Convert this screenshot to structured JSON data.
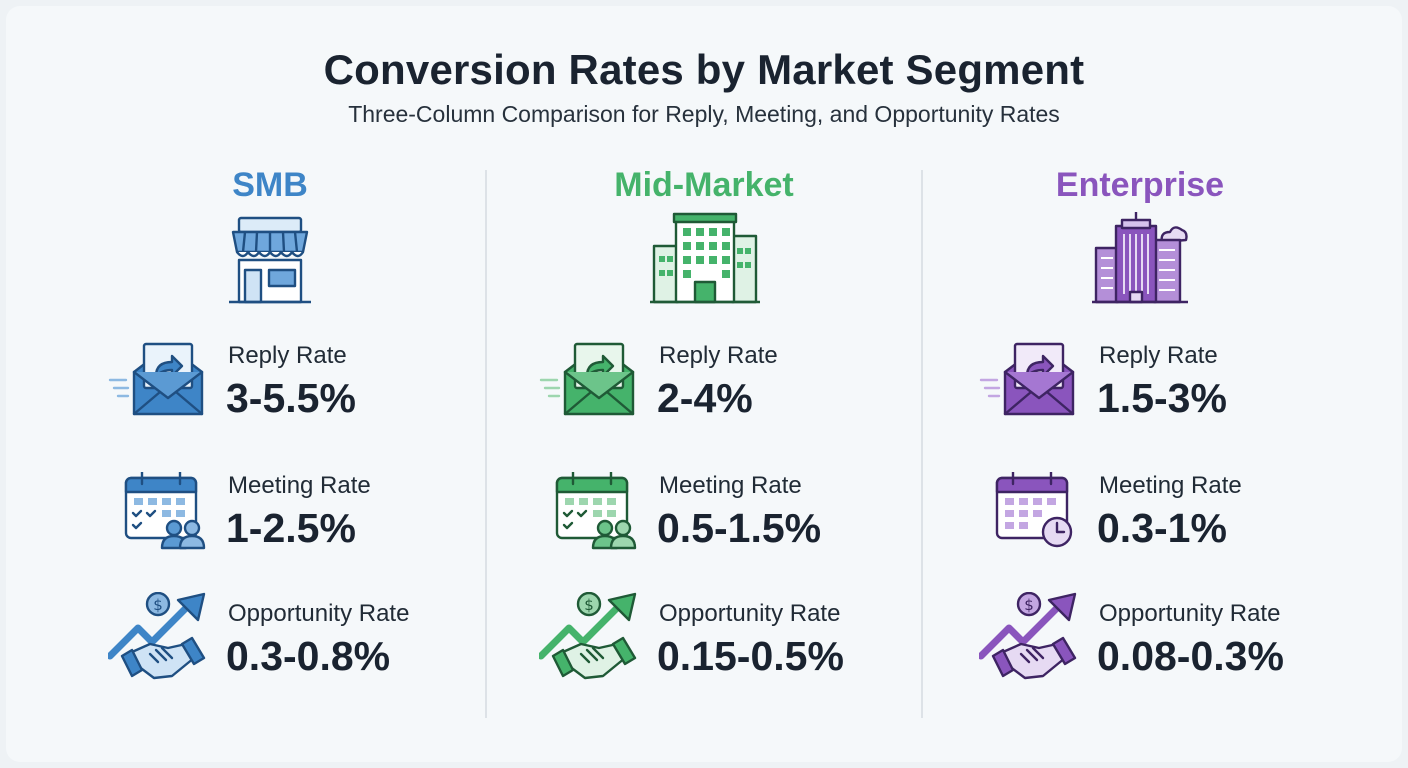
{
  "header": {
    "title": "Conversion Rates by Market Segment",
    "subtitle": "Three-Column Comparison for Reply, Meeting, and Opportunity Rates"
  },
  "segments": [
    {
      "name": "SMB",
      "color": "#3e85c7",
      "icon": "storefront-icon",
      "metrics": [
        {
          "label": "Reply Rate",
          "value": "3-5.5%",
          "icon": "envelope-reply-icon"
        },
        {
          "label": "Meeting Rate",
          "value": "1-2.5%",
          "icon": "calendar-people-icon"
        },
        {
          "label": "Opportunity Rate",
          "value": "0.3-0.8%",
          "icon": "handshake-growth-icon"
        }
      ]
    },
    {
      "name": "Mid-Market",
      "color": "#45b36b",
      "icon": "office-building-icon",
      "metrics": [
        {
          "label": "Reply Rate",
          "value": "2-4%",
          "icon": "envelope-reply-icon"
        },
        {
          "label": "Meeting Rate",
          "value": "0.5-1.5%",
          "icon": "calendar-people-icon"
        },
        {
          "label": "Opportunity Rate",
          "value": "0.15-0.5%",
          "icon": "handshake-growth-icon"
        }
      ]
    },
    {
      "name": "Enterprise",
      "color": "#8a55bd",
      "icon": "skyscraper-icon",
      "metrics": [
        {
          "label": "Reply Rate",
          "value": "1.5-3%",
          "icon": "envelope-reply-icon"
        },
        {
          "label": "Meeting Rate",
          "value": "0.3-1%",
          "icon": "calendar-clock-icon"
        },
        {
          "label": "Opportunity Rate",
          "value": "0.08-0.3%",
          "icon": "handshake-growth-icon"
        }
      ]
    }
  ]
}
